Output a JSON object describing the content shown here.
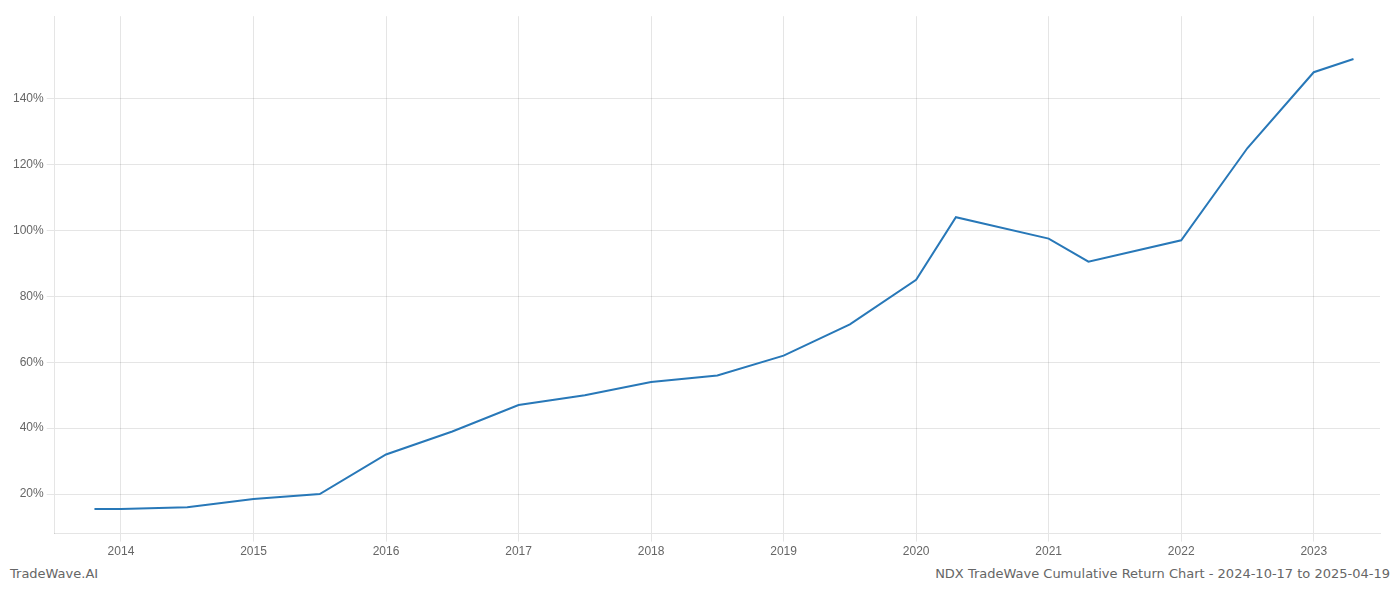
{
  "chart_data": {
    "type": "line",
    "x": [
      2013.8,
      2014.0,
      2014.5,
      2015.0,
      2015.5,
      2016.0,
      2016.5,
      2017.0,
      2017.5,
      2018.0,
      2018.5,
      2019.0,
      2019.5,
      2020.0,
      2020.3,
      2021.0,
      2021.3,
      2022.0,
      2022.5,
      2023.0,
      2023.3
    ],
    "values": [
      15.5,
      15.5,
      16.0,
      18.5,
      20.0,
      32.0,
      39.0,
      47.0,
      50.0,
      54.0,
      56.0,
      62.0,
      71.5,
      85.0,
      104.0,
      97.5,
      90.5,
      97.0,
      125.0,
      148.0,
      152.0
    ],
    "color": "#2878b8",
    "xlim": [
      2013.5,
      2023.5
    ],
    "xticks": [
      2014,
      2015,
      2016,
      2017,
      2018,
      2019,
      2020,
      2021,
      2022,
      2023
    ],
    "ylim": [
      8,
      165
    ],
    "yticks": [
      {
        "value": 20,
        "label": "20%"
      },
      {
        "value": 40,
        "label": "40%"
      },
      {
        "value": 60,
        "label": "60%"
      },
      {
        "value": 80,
        "label": "80%"
      },
      {
        "value": 100,
        "label": "100%"
      },
      {
        "value": 120,
        "label": "120%"
      },
      {
        "value": 140,
        "label": "140%"
      }
    ],
    "grid": true,
    "annotations": [
      "TradeWave.AI",
      "NDX TradeWave Cumulative Return Chart - 2024-10-17 to 2025-04-19"
    ]
  }
}
